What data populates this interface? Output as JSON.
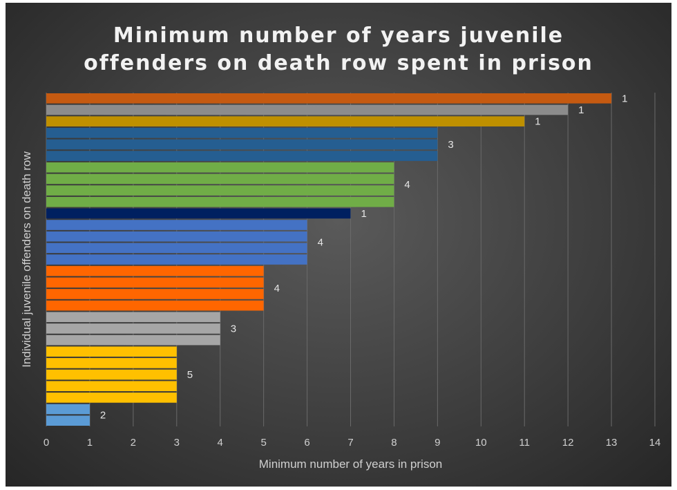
{
  "chart_data": {
    "type": "bar",
    "orientation": "horizontal",
    "title_lines": [
      "Minimum number of years juvenile",
      "offenders on death row spent in prison"
    ],
    "xlabel": "Minimum number of years in prison",
    "ylabel": "Individual juvenile offenders on death row",
    "xlim": [
      0,
      14
    ],
    "xticks": [
      "0",
      "1",
      "2",
      "3",
      "4",
      "5",
      "6",
      "7",
      "8",
      "9",
      "10",
      "11",
      "12",
      "13",
      "14"
    ],
    "grid": true,
    "legend": "none",
    "groups": [
      {
        "value": 13,
        "count": 1,
        "label": "1",
        "color": "#c55a11"
      },
      {
        "value": 12,
        "count": 1,
        "label": "1",
        "color": "#8c8c8c"
      },
      {
        "value": 11,
        "count": 1,
        "label": "1",
        "color": "#bf9000"
      },
      {
        "value": 9,
        "count": 3,
        "label": "3",
        "color": "#255e91"
      },
      {
        "value": 8,
        "count": 4,
        "label": "4",
        "color": "#70ad47"
      },
      {
        "value": 7,
        "count": 1,
        "label": "1",
        "color": "#002060"
      },
      {
        "value": 6,
        "count": 4,
        "label": "4",
        "color": "#4472c4"
      },
      {
        "value": 5,
        "count": 4,
        "label": "4",
        "color": "#ff6600"
      },
      {
        "value": 4,
        "count": 3,
        "label": "3",
        "color": "#a6a6a6"
      },
      {
        "value": 3,
        "count": 5,
        "label": "5",
        "color": "#ffc000"
      },
      {
        "value": 1,
        "count": 2,
        "label": "2",
        "color": "#5b9bd5"
      }
    ]
  }
}
